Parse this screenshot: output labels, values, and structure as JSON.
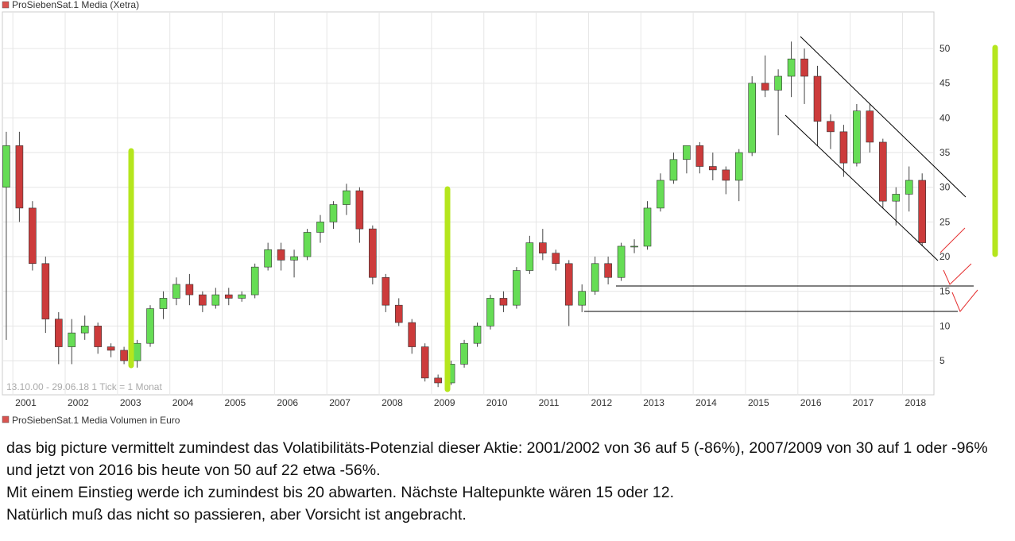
{
  "chart_data": {
    "type": "candlestick",
    "title": "ProSiebenSat.1 Media (Xetra)",
    "footnote": "13.10.00 - 29.06.18   1 Tick = 1 Monat",
    "volume_label": "ProSiebenSat.1 Media Volumen in Euro",
    "legend_color": "#d9534f",
    "up_color": "#66dd55",
    "down_color": "#cc3b3b",
    "grid": true,
    "xlim": [
      2000.8,
      2018.6
    ],
    "xticks": [
      2001,
      2002,
      2003,
      2004,
      2005,
      2006,
      2007,
      2008,
      2009,
      2010,
      2011,
      2012,
      2013,
      2014,
      2015,
      2016,
      2017,
      2018
    ],
    "ylim": [
      0,
      55
    ],
    "yticks": [
      5,
      10,
      15,
      20,
      25,
      30,
      35,
      40,
      45,
      50
    ],
    "x": [
      2000.875,
      2001.125,
      2001.375,
      2001.625,
      2001.875,
      2002.125,
      2002.375,
      2002.625,
      2002.875,
      2003.125,
      2003.375,
      2003.625,
      2003.875,
      2004.125,
      2004.375,
      2004.625,
      2004.875,
      2005.125,
      2005.375,
      2005.625,
      2005.875,
      2006.125,
      2006.375,
      2006.625,
      2006.875,
      2007.125,
      2007.375,
      2007.625,
      2007.875,
      2008.125,
      2008.375,
      2008.625,
      2008.875,
      2009.125,
      2009.375,
      2009.625,
      2009.875,
      2010.125,
      2010.375,
      2010.625,
      2010.875,
      2011.125,
      2011.375,
      2011.625,
      2011.875,
      2012.125,
      2012.375,
      2012.625,
      2012.875,
      2013.125,
      2013.375,
      2013.625,
      2013.875,
      2014.125,
      2014.375,
      2014.625,
      2014.875,
      2015.125,
      2015.375,
      2015.625,
      2015.875,
      2016.125,
      2016.375,
      2016.625,
      2016.875,
      2017.125,
      2017.375,
      2017.625,
      2017.875,
      2018.125,
      2018.375
    ],
    "open": [
      30,
      36,
      27,
      19,
      11,
      7,
      9,
      10,
      7,
      6.5,
      5,
      7.5,
      12.5,
      14,
      16,
      14.5,
      13,
      14.5,
      14,
      14.5,
      18.5,
      21,
      19.5,
      20,
      23.5,
      25,
      27.5,
      29.5,
      24,
      17,
      13,
      10.5,
      7,
      2.5,
      1.8,
      4.5,
      7.5,
      10,
      14,
      13,
      18,
      22,
      20.5,
      19,
      13,
      15,
      19,
      17,
      21.5,
      21.5,
      27,
      31,
      34,
      36,
      33,
      32.5,
      31,
      35,
      45,
      44,
      46,
      48.5,
      46,
      39.5,
      38,
      33.5,
      41,
      36.5,
      28,
      29,
      31
    ],
    "high": [
      38,
      38,
      28,
      20,
      12,
      11,
      11.5,
      10.5,
      7.5,
      7,
      8,
      13,
      15,
      17,
      17.5,
      15,
      15.5,
      15.5,
      15,
      19,
      22,
      22,
      21,
      24,
      26,
      28,
      30.5,
      30,
      24.5,
      17.5,
      14,
      11,
      7.5,
      3,
      5,
      8,
      10.5,
      14.5,
      15,
      18.5,
      23,
      24,
      21,
      19.5,
      16,
      20,
      20,
      22,
      22.5,
      28,
      32,
      35,
      36,
      36.5,
      35,
      33,
      35.5,
      46,
      49,
      47,
      51,
      50,
      47.5,
      40.5,
      39,
      42,
      42,
      37,
      30,
      33,
      32
    ],
    "low": [
      8,
      25,
      18,
      9,
      4.5,
      4.5,
      8,
      6,
      5.5,
      4.5,
      4,
      7,
      11,
      13,
      13,
      12,
      12.5,
      13,
      13.5,
      14,
      18,
      18,
      17,
      19.5,
      22,
      24,
      26,
      22,
      16,
      12,
      10,
      6,
      2,
      1.2,
      1.5,
      4,
      7,
      9.5,
      12,
      12.5,
      17.5,
      19.5,
      18,
      10,
      12,
      14.5,
      16,
      16.5,
      20.5,
      21,
      26.5,
      30.5,
      32,
      32,
      31,
      29,
      28,
      34.5,
      43,
      37.5,
      43,
      42,
      36,
      35.5,
      31.5,
      33,
      35,
      27,
      24.5,
      26.5,
      21.5
    ],
    "close": [
      36,
      27,
      19,
      11,
      7,
      9,
      10,
      7,
      6.5,
      5,
      7.5,
      12.5,
      14,
      16,
      14.5,
      13,
      14.5,
      14,
      14.5,
      18.5,
      21,
      19.5,
      20,
      23.5,
      25,
      27.5,
      29.5,
      24,
      17,
      13,
      10.5,
      7,
      2.5,
      1.8,
      4.5,
      7.5,
      10,
      14,
      13,
      18,
      22,
      20.5,
      19,
      13,
      15,
      19,
      17,
      21.5,
      21.5,
      27,
      31,
      34,
      36,
      33,
      32.5,
      31,
      35,
      45,
      44,
      46,
      48.5,
      46,
      39.5,
      38,
      33.5,
      41,
      36.5,
      28,
      29,
      31,
      22
    ]
  },
  "text": {
    "paragraphs": [
      "das big picture vermittelt zumindest das Volatibilitäts-Potenzial dieser Aktie:   2001/2002 von 36 auf 5 (-86%),  2007/2009 von 30 auf 1  oder -96% und jetzt von 2016 bis heute von 50 auf 22 etwa -56%.",
      "Mit einem Einstieg werde ich zumindest bis 20 abwarten. Nächste Haltepunkte wären 15 oder 12.",
      "Natürlich muß das nicht so passieren, aber Vorsicht ist angebracht."
    ]
  }
}
